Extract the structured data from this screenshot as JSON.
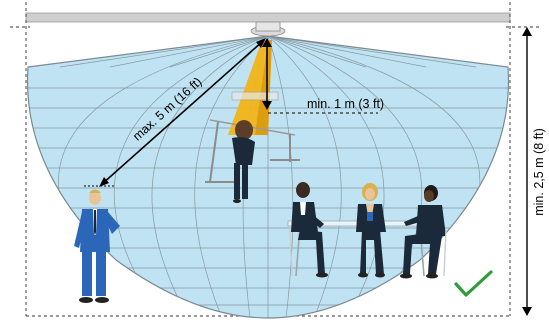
{
  "labels": {
    "max_distance": "max. 5 m (16 ft)",
    "min_distance": "min. 1 m (3 ft)",
    "min_height": "min. 2,5 m (8 ft)"
  },
  "icons": {
    "sensor": "ceiling-sensor-icon",
    "check": "checkmark-icon"
  },
  "colors": {
    "coverage_fill": "#bfe3f3",
    "coverage_grid": "#8a8f94",
    "beam": "#f2b418",
    "check": "#2e9c3a",
    "ceiling": "#c9c9c9",
    "suit": "#2c66b8",
    "suit_dark": "#1b2a3a"
  }
}
